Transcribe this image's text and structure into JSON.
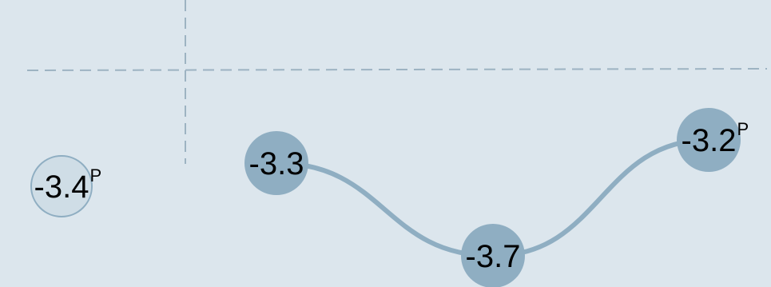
{
  "chart_data": {
    "type": "line",
    "series": [
      {
        "x": [
          1
        ],
        "values": [
          -3.4
        ],
        "labels": [
          "-3.4"
        ],
        "suffixes": [
          "P"
        ],
        "style": "hollow"
      },
      {
        "x": [
          2,
          3,
          4
        ],
        "values": [
          -3.3,
          -3.7,
          -3.2
        ],
        "labels": [
          "-3.3",
          "-3.7",
          "-3.2"
        ],
        "suffixes": [
          "",
          "",
          "P"
        ],
        "style": "filled"
      }
    ],
    "grid": true,
    "colors": {
      "background": "#dce6ed",
      "marker_fill": "#8faec2",
      "marker_hollow": "#cfdde6",
      "marker_stroke": "#8faec2",
      "line": "#8faec2",
      "grid": "#9db3c2"
    }
  }
}
